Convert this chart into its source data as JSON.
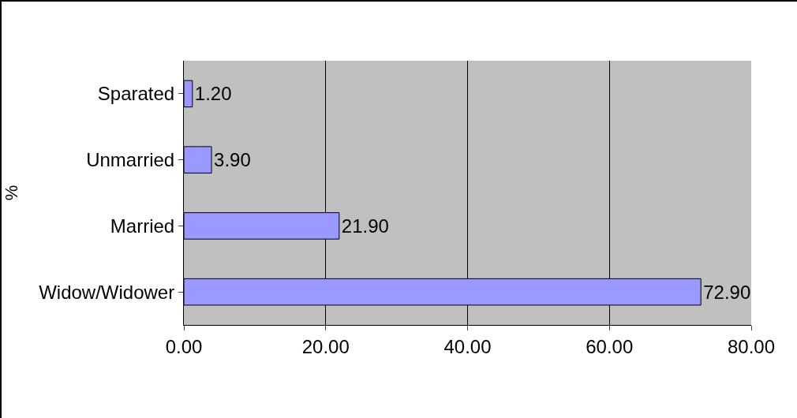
{
  "chart_data": {
    "type": "bar",
    "orientation": "horizontal",
    "ylabel": "%",
    "categories": [
      "Sparated",
      "Unmarried",
      "Married",
      "Widow/Widower"
    ],
    "values": [
      1.2,
      3.9,
      21.9,
      72.9
    ],
    "value_labels": [
      "1.20",
      "3.90",
      "21.90",
      "72.90"
    ],
    "color": "#9999ff",
    "xlim": [
      0,
      80
    ],
    "xticks": [
      {
        "value": 0,
        "label": "0.00"
      },
      {
        "value": 20,
        "label": "20.00"
      },
      {
        "value": 40,
        "label": "40.00"
      },
      {
        "value": 60,
        "label": "60.00"
      },
      {
        "value": 80,
        "label": "80.00"
      }
    ],
    "grid": "x",
    "legend": false
  }
}
